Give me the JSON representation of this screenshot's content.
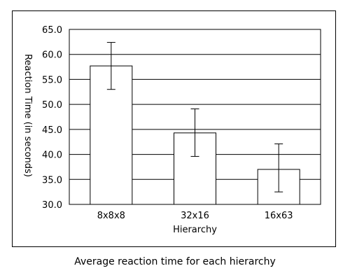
{
  "caption": "Average reaction time for each hierarchy",
  "chart_data": {
    "type": "bar",
    "title": "",
    "xlabel": "Hierarchy",
    "ylabel": "Reaction Time (in seconds)",
    "categories": [
      "8x8x8",
      "32x16",
      "16x63"
    ],
    "values": [
      57.7,
      44.3,
      37.0
    ],
    "error_low": [
      53.0,
      39.6,
      32.5
    ],
    "error_high": [
      62.4,
      49.1,
      42.1
    ],
    "ylim": [
      30.0,
      65.0
    ],
    "yticks": [
      "30.0",
      "35.0",
      "40.0",
      "45.0",
      "50.0",
      "55.0",
      "60.0",
      "65.0"
    ],
    "grid": true,
    "bar_color": "#ffffff",
    "line_color": "#000000"
  }
}
